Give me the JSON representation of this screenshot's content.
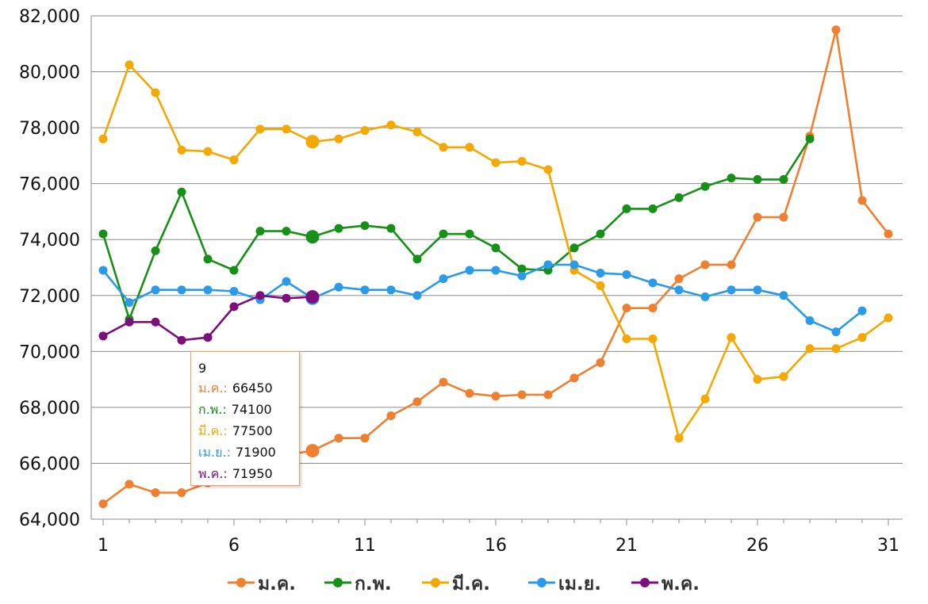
{
  "chart_data": {
    "type": "line",
    "title": "",
    "xlabel": "",
    "ylabel": "",
    "x": [
      1,
      2,
      3,
      4,
      5,
      6,
      7,
      8,
      9,
      10,
      11,
      12,
      13,
      14,
      15,
      16,
      17,
      18,
      19,
      20,
      21,
      22,
      23,
      24,
      25,
      26,
      27,
      28,
      29,
      30,
      31
    ],
    "x_ticks": [
      "1",
      "6",
      "11",
      "16",
      "21",
      "26",
      "31"
    ],
    "y_ticks": [
      "64,000",
      "66,000",
      "68,000",
      "70,000",
      "72,000",
      "74,000",
      "76,000",
      "78,000",
      "80,000",
      "82,000"
    ],
    "ylim": [
      64000,
      82000
    ],
    "grid": true,
    "legend_position": "bottom",
    "series": [
      {
        "name": "ม.ค.",
        "color": "#f07f2f",
        "values": [
          64550,
          65250,
          64950,
          64950,
          65300,
          65700,
          66100,
          66300,
          66450,
          66900,
          66900,
          67700,
          68200,
          68900,
          68500,
          68400,
          68450,
          68450,
          69050,
          69600,
          71550,
          71550,
          72600,
          73100,
          73100,
          74800,
          74800,
          77700,
          81500,
          75400,
          74200
        ]
      },
      {
        "name": "ก.พ.",
        "color": "#179017",
        "values": [
          74200,
          71150,
          73600,
          75700,
          73300,
          72900,
          74300,
          74300,
          74100,
          74400,
          74500,
          74400,
          73300,
          74200,
          74200,
          73700,
          72950,
          72900,
          73700,
          74200,
          75100,
          75100,
          75500,
          75900,
          76200,
          76150,
          76150,
          77600,
          null,
          null,
          null
        ]
      },
      {
        "name": "มี.ค.",
        "color": "#f5a800",
        "values": [
          77600,
          80250,
          79250,
          77200,
          77150,
          76850,
          77950,
          77950,
          77500,
          77600,
          77900,
          78100,
          77850,
          77300,
          77300,
          76750,
          76800,
          76500,
          72900,
          72350,
          70450,
          70450,
          66900,
          68300,
          70500,
          69000,
          69100,
          70100,
          70100,
          70500,
          71200
        ]
      },
      {
        "name": "เม.ย.",
        "color": "#2a9be6",
        "values": [
          72900,
          71750,
          72200,
          72200,
          72200,
          72150,
          71850,
          72500,
          71900,
          72300,
          72200,
          72200,
          72000,
          72600,
          72900,
          72900,
          72700,
          73100,
          73100,
          72800,
          72750,
          72450,
          72200,
          71950,
          72200,
          72200,
          72000,
          71100,
          70700,
          71450,
          null
        ]
      },
      {
        "name": "พ.ค.",
        "color": "#7d0f7d",
        "values": [
          70550,
          71050,
          71050,
          70400,
          70500,
          71600,
          72000,
          71900,
          71950,
          null,
          null,
          null,
          null,
          null,
          null,
          null,
          null,
          null,
          null,
          null,
          null,
          null,
          null,
          null,
          null,
          null,
          null,
          null,
          null,
          null,
          null
        ]
      }
    ],
    "highlight_index": 8
  },
  "tooltip": {
    "x_label": "9",
    "rows": [
      {
        "name": "ม.ค.:",
        "value": "66450"
      },
      {
        "name": "ก.พ.:",
        "value": "74100"
      },
      {
        "name": "มี.ค.:",
        "value": "77500"
      },
      {
        "name": "เม.ย.:",
        "value": "71900"
      },
      {
        "name": "พ.ค.:",
        "value": "71950"
      }
    ]
  }
}
